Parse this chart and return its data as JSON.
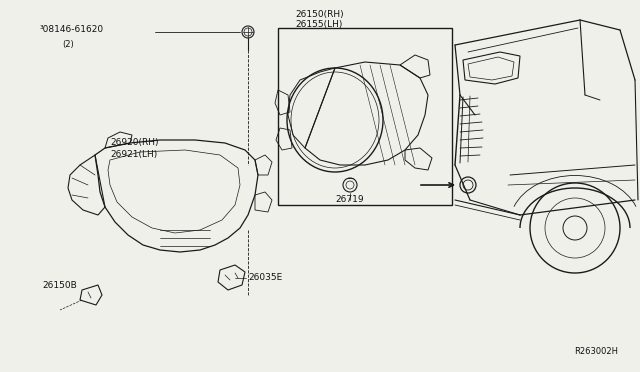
{
  "bg_color": "#f0f0eb",
  "line_color": "#1a1a1a",
  "text_color": "#111111",
  "ref_code": "R263002H",
  "figsize": [
    6.4,
    3.72
  ],
  "dpi": 100,
  "label_b08146": "³08146-61620",
  "label_b08146_sub": "(2)",
  "label_26920": "26920(RH)",
  "label_26921": "26921(LH)",
  "label_26150rh": "26150(RH)",
  "label_26155lh": "26155(LH)",
  "label_26719": "26719",
  "label_26150b": "26150B",
  "label_26035e": "26035E"
}
